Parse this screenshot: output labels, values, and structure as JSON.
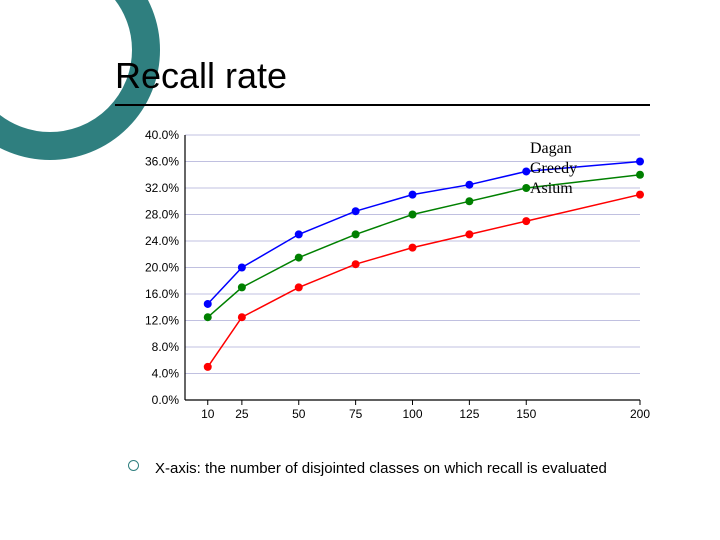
{
  "slide": {
    "title": "Recall rate",
    "footnote": "X-axis: the number of disjointed classes on which recall is evaluated",
    "accent_color": "#2f7f7f"
  },
  "chart": {
    "type": "line",
    "background_color": "#ffffff",
    "axis_color": "#000000",
    "grid_color": "#c0c0e0",
    "tick_label_fontsize": 12,
    "x": {
      "ticks": [
        10,
        25,
        50,
        75,
        100,
        125,
        150,
        200
      ],
      "lim": [
        0,
        200
      ]
    },
    "y": {
      "ticks": [
        0.0,
        4.0,
        8.0,
        12.0,
        16.0,
        20.0,
        24.0,
        28.0,
        32.0,
        36.0,
        40.0
      ],
      "tick_labels": [
        "0.0%",
        "4.0%",
        "8.0%",
        "12.0%",
        "16.0%",
        "20.0%",
        "24.0%",
        "28.0%",
        "32.0%",
        "36.0%",
        "40.0%"
      ],
      "lim": [
        0,
        40
      ]
    },
    "marker": {
      "shape": "circle",
      "radius": 4
    },
    "line_width": 1.5,
    "series": [
      {
        "name": "Dagan",
        "color": "#0000ff",
        "x": [
          10,
          25,
          50,
          75,
          100,
          125,
          150,
          200
        ],
        "y": [
          14.5,
          20.0,
          25.0,
          28.5,
          31.0,
          32.5,
          34.5,
          36.0
        ]
      },
      {
        "name": "Greedy",
        "color": "#008000",
        "x": [
          10,
          25,
          50,
          75,
          100,
          125,
          150,
          200
        ],
        "y": [
          12.5,
          17.0,
          21.5,
          25.0,
          28.0,
          30.0,
          32.0,
          34.0
        ]
      },
      {
        "name": "Asium",
        "color": "#ff0000",
        "x": [
          10,
          25,
          50,
          75,
          100,
          125,
          150,
          200
        ],
        "y": [
          5.0,
          12.5,
          17.0,
          20.5,
          23.0,
          25.0,
          27.0,
          31.0
        ]
      }
    ],
    "legend": {
      "position": "top-right-inside",
      "fontsize": 16,
      "items": [
        "Dagan",
        "Greedy",
        "Asium"
      ]
    }
  }
}
